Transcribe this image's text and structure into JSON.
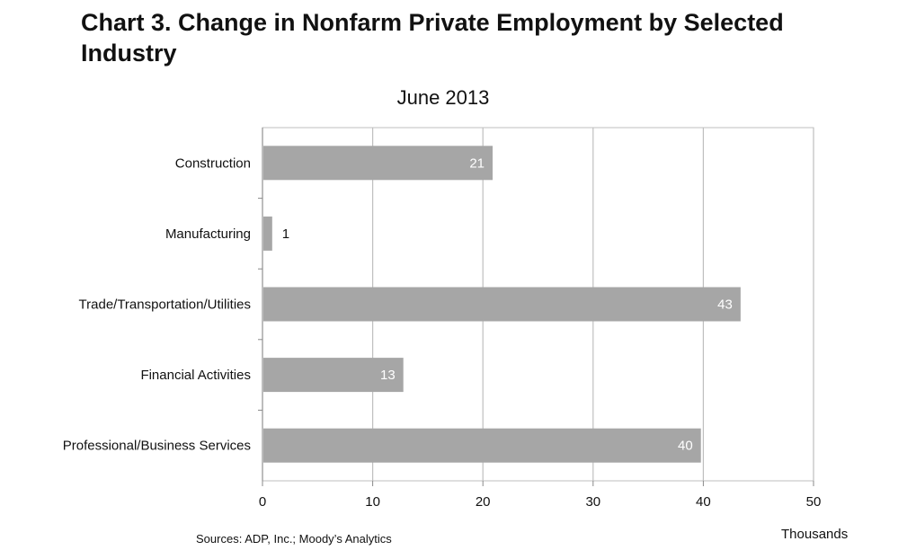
{
  "header": {
    "title": "Chart 3. Change in Nonfarm Private Employment by Selected Industry"
  },
  "footer": {
    "source": "Sources: ADP, Inc.; Moody’s Analytics"
  },
  "chart_data": {
    "type": "bar",
    "orientation": "horizontal",
    "title": "June 2013",
    "xlabel": "Thousands",
    "ylabel": "",
    "categories": [
      "Construction",
      "Manufacturing",
      "Trade/Transportation/Utilities",
      "Financial Activities",
      "Professional/Business Services"
    ],
    "values": [
      20.8,
      0.8,
      43.3,
      12.7,
      39.7
    ],
    "data_labels": [
      "21",
      "1",
      "43",
      "13",
      "40"
    ],
    "xlim": [
      0,
      50
    ],
    "xticks": [
      0,
      10,
      20,
      30,
      40,
      50
    ],
    "grid": "vertical",
    "legend": "none",
    "colors": {
      "bar": "#a6a6a6",
      "grid": "#bfbfbf",
      "label_inside": "#ffffff",
      "label_outside": "#111111"
    }
  }
}
